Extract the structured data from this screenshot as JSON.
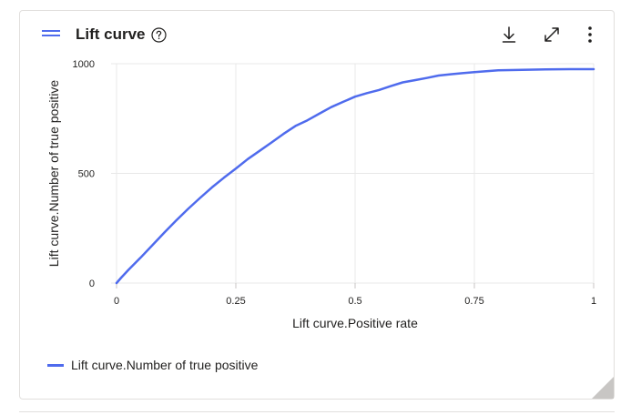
{
  "card": {
    "title": "Lift curve",
    "icons": {
      "drag": "drag-handle-icon",
      "help": "help-circle-icon",
      "download": "download-icon",
      "expand": "expand-icon",
      "more": "more-vertical-icon"
    }
  },
  "colors": {
    "series": "#4f6bed",
    "grid": "#e8e8e8",
    "text": "#201f1e"
  },
  "chart_data": {
    "type": "line",
    "title": "",
    "xlabel": "Lift curve.Positive rate",
    "ylabel": "Lift curve.Number of true positive",
    "xlim": [
      0,
      1
    ],
    "ylim": [
      0,
      1000
    ],
    "xticks": [
      0,
      0.25,
      0.5,
      0.75,
      1
    ],
    "xtick_labels": [
      "0",
      "0.25",
      "0.5",
      "0.75",
      "1"
    ],
    "yticks": [
      0,
      500,
      1000
    ],
    "ytick_labels": [
      "0",
      "500",
      "1000"
    ],
    "grid": true,
    "legend_position": "bottom-left",
    "series": [
      {
        "name": "Lift curve.Number of true positive",
        "x": [
          0,
          0.01,
          0.025,
          0.05,
          0.075,
          0.1,
          0.125,
          0.15,
          0.175,
          0.2,
          0.225,
          0.25,
          0.275,
          0.3,
          0.325,
          0.35,
          0.375,
          0.4,
          0.425,
          0.45,
          0.475,
          0.5,
          0.525,
          0.55,
          0.575,
          0.6,
          0.625,
          0.65,
          0.675,
          0.7,
          0.725,
          0.75,
          0.775,
          0.8,
          0.85,
          0.9,
          0.95,
          1.0
        ],
        "y": [
          0,
          25,
          60,
          115,
          172,
          230,
          285,
          338,
          388,
          436,
          480,
          522,
          565,
          603,
          641,
          680,
          716,
          742,
          772,
          802,
          826,
          850,
          866,
          880,
          898,
          915,
          925,
          935,
          946,
          952,
          957,
          962,
          966,
          970,
          972,
          974,
          975,
          975
        ]
      }
    ]
  },
  "legend": {
    "label": "Lift curve.Number of true positive"
  }
}
